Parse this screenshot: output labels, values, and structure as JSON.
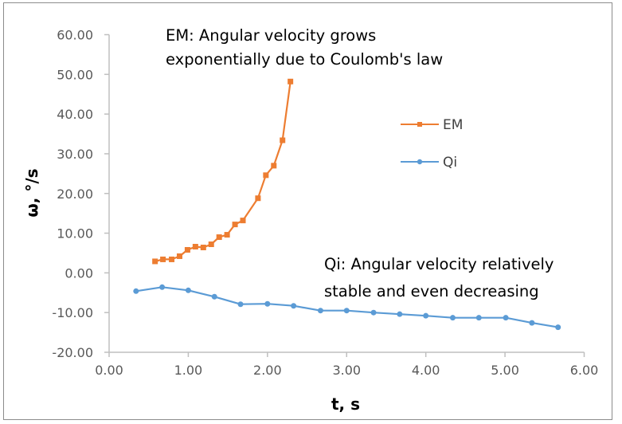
{
  "chart_data": {
    "type": "scatter",
    "title": "",
    "xlabel": "t, s",
    "ylabel": "ω, °/s",
    "xlim": [
      0,
      6
    ],
    "ylim": [
      -20,
      60
    ],
    "x_ticks": [
      0,
      1,
      2,
      3,
      4,
      5,
      6
    ],
    "y_ticks": [
      -20,
      -10,
      0,
      10,
      20,
      30,
      40,
      50,
      60
    ],
    "x_tick_labels": [
      "0.00",
      "1.00",
      "2.00",
      "3.00",
      "4.00",
      "5.00",
      "6.00"
    ],
    "y_tick_labels": [
      "-20.00",
      "-10.00",
      "0.00",
      "10.00",
      "20.00",
      "30.00",
      "40.00",
      "50.00",
      "60.00"
    ],
    "grid": false,
    "legend_position": "right",
    "series": [
      {
        "name": "EM",
        "color": "#ED7D31",
        "marker": "square",
        "x": [
          0.58,
          0.68,
          0.79,
          0.89,
          0.99,
          1.09,
          1.19,
          1.29,
          1.39,
          1.49,
          1.59,
          1.69,
          1.88,
          1.98,
          2.08,
          2.19,
          2.29
        ],
        "y": [
          2.9,
          3.4,
          3.4,
          4.2,
          5.8,
          6.6,
          6.4,
          7.2,
          9.0,
          9.6,
          12.2,
          13.2,
          18.8,
          24.6,
          27.0,
          33.4,
          48.2
        ]
      },
      {
        "name": "Qi",
        "color": "#5B9BD5",
        "marker": "circle",
        "x": [
          0.34,
          0.67,
          1.0,
          1.33,
          1.66,
          2.0,
          2.33,
          2.67,
          3.0,
          3.34,
          3.67,
          4.0,
          4.34,
          4.67,
          5.01,
          5.34,
          5.67
        ],
        "y": [
          -4.6,
          -3.6,
          -4.4,
          -6.0,
          -7.9,
          -7.8,
          -8.3,
          -9.5,
          -9.5,
          -10.0,
          -10.4,
          -10.8,
          -11.3,
          -11.3,
          -11.3,
          -12.6,
          -13.7
        ]
      }
    ],
    "annotations": [
      {
        "lines": [
          "EM: Angular velocity grows",
          "exponentially due to Coulomb's law"
        ]
      },
      {
        "lines": [
          "Qi: Angular velocity relatively",
          "stable and even decreasing"
        ]
      }
    ]
  }
}
